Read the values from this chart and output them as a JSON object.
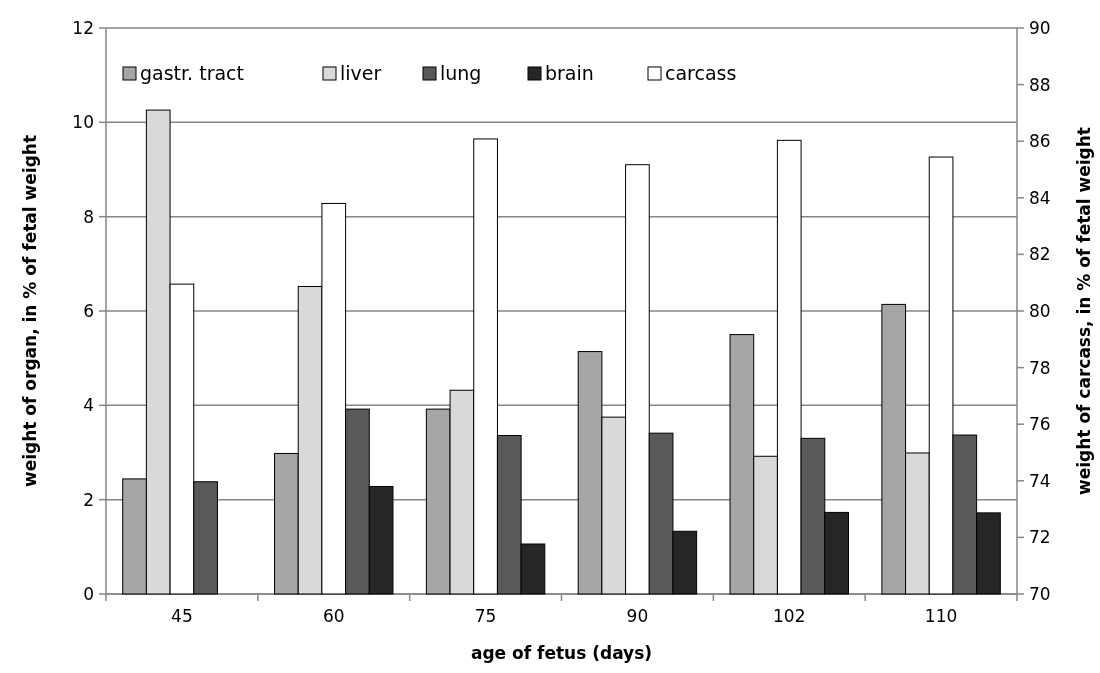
{
  "chart_data": {
    "type": "bar",
    "xlabel": "age of fetus (days)",
    "ylabel": "weight of organ, in % of fetal weight",
    "y2label": "weight of carcass, in % of fetal weight",
    "categories": [
      "45",
      "60",
      "75",
      "90",
      "102",
      "110"
    ],
    "series": [
      {
        "name": "gastr. tract",
        "color": "#a6a6a6",
        "values": [
          2.44,
          2.98,
          3.92,
          5.14,
          5.5,
          6.14
        ]
      },
      {
        "name": "liver",
        "color": "#d9d9d9",
        "values": [
          10.26,
          6.52,
          4.32,
          3.75,
          2.92,
          2.99
        ]
      },
      {
        "name": "carcass",
        "color": "#ffffff",
        "axis": "y2",
        "values": [
          80.95,
          83.8,
          86.08,
          85.17,
          86.03,
          85.44
        ]
      },
      {
        "name": "lung",
        "color": "#595959",
        "values": [
          2.38,
          3.92,
          3.36,
          3.41,
          3.3,
          3.37
        ]
      },
      {
        "name": "brain",
        "color": "#262626",
        "values": [
          null,
          2.28,
          1.06,
          1.33,
          1.73,
          1.72
        ]
      }
    ],
    "ylim": [
      0,
      12
    ],
    "yticks": [
      0,
      2,
      4,
      6,
      8,
      10,
      12
    ],
    "y2lim": [
      70,
      90
    ],
    "y2ticks": [
      70,
      72,
      74,
      76,
      78,
      80,
      82,
      84,
      86,
      88,
      90
    ],
    "grid": "y",
    "legend": "top"
  }
}
